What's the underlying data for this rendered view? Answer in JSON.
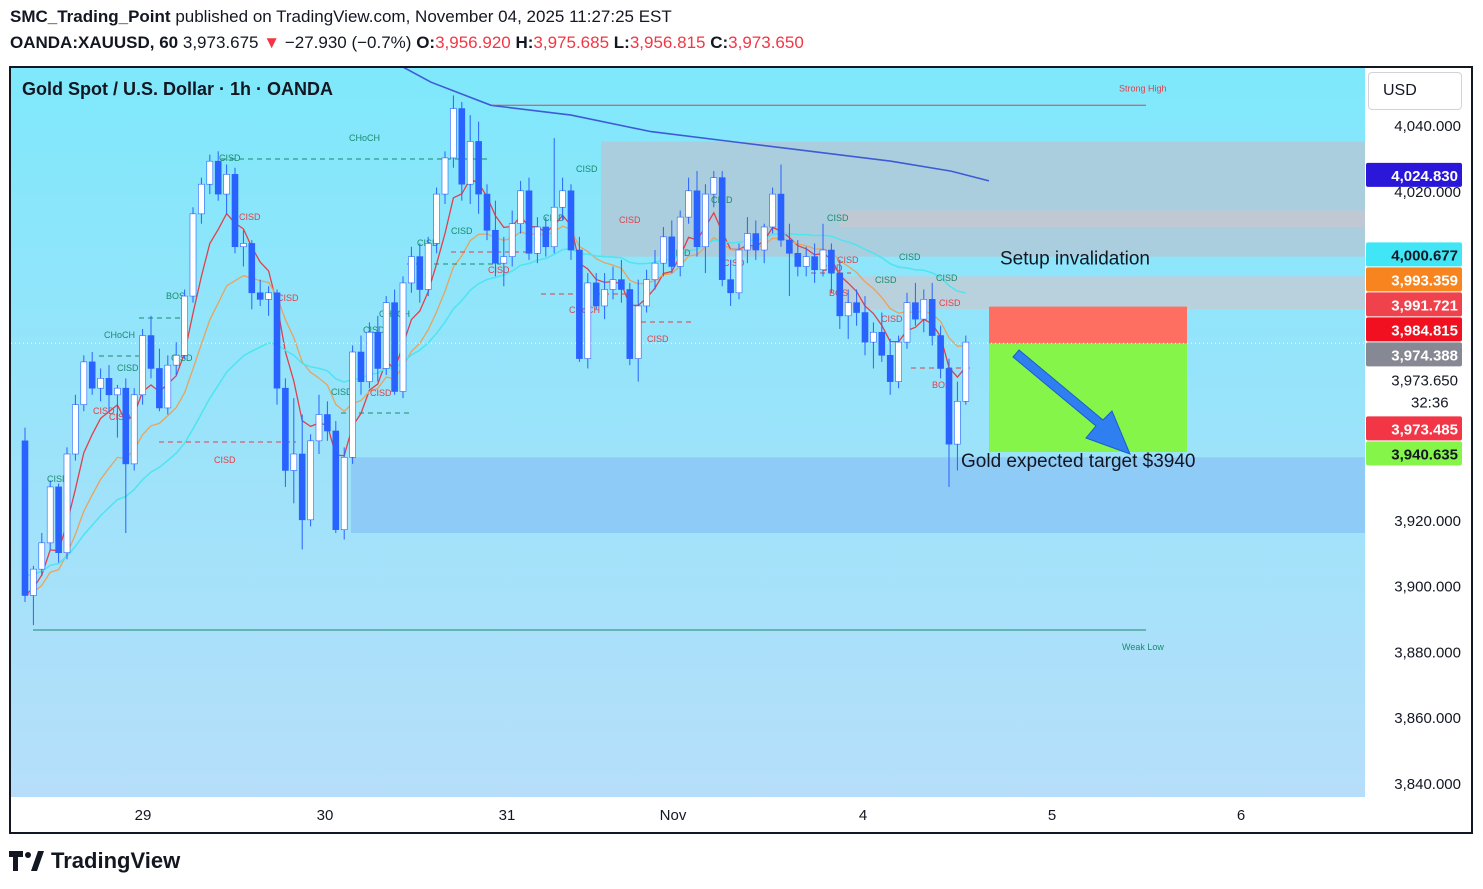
{
  "header": {
    "author": "SMC_Trading_Point",
    "published": "published on TradingView.com, November 04, 2025 11:27:25 EST",
    "symbol": "OANDA:XAUUSD, 60",
    "last": "3,973.675",
    "change_arrow": "▼",
    "change": "−27.930 (−0.7%)",
    "o_label": "O:",
    "o": "3,956.920",
    "h_label": "H:",
    "h": "3,975.685",
    "l_label": "L:",
    "l": "3,956.815",
    "c_label": "C:",
    "c": "3,973.650"
  },
  "chart_title": "Gold Spot / U.S. Dollar · 1h · OANDA",
  "currency_button": "USD",
  "brand": "TradingView",
  "colors": {
    "background_top": "#7fe8fb",
    "background_bottom": "#b9defa",
    "bull": "#ffffff",
    "bear": "#2962ff",
    "stop_zone": "#ff6f61",
    "target_zone": "#86f54a",
    "demand_zone": "#8ecbf7",
    "supply_zone": "#b0c9d8",
    "ema_blue": "#3d5bd6",
    "ema_cyan": "#4ee4f0",
    "ema_orange": "#e8a35d",
    "ema_red": "#e0404a"
  },
  "chart_data": {
    "type": "candlestick",
    "symbol": "XAUUSD",
    "timeframe": "1h",
    "y_axis": {
      "ticks": [
        4040,
        4020,
        3920,
        3900,
        3880,
        3860,
        3840
      ],
      "tick_labels": [
        "4,040.000",
        "4,020.000",
        "3,920.000",
        "3,900.000",
        "3,880.000",
        "3,860.000",
        "3,840.000"
      ],
      "ylim": [
        3831,
        4067
      ]
    },
    "x_axis": {
      "tick_labels": [
        "29",
        "30",
        "31",
        "Nov",
        "4",
        "5",
        "6"
      ]
    },
    "price_tags": [
      {
        "value": 4024.83,
        "label": "4,024.830",
        "color": "#2a17d9",
        "text_color": "#ffffff"
      },
      {
        "value": 4000.677,
        "label": "4,000.677",
        "color": "#40e6f5",
        "text_color": "#131722"
      },
      {
        "value": 3993.359,
        "label": "3,993.359",
        "color": "#f7841e",
        "text_color": "#ffffff"
      },
      {
        "value": 3991.721,
        "label": "3,991.721",
        "color": "#f0424c",
        "text_color": "#ffffff"
      },
      {
        "value": 3984.815,
        "label": "3,984.815",
        "color": "#f0101f",
        "text_color": "#ffffff"
      },
      {
        "value": 3974.388,
        "label": "3,974.388",
        "color": "#868993",
        "text_color": "#ffffff"
      },
      {
        "value": 3973.65,
        "label": "3,973.650",
        "color": "#ffffff",
        "text_color": "#131722",
        "sub": "32:36"
      },
      {
        "value": 3973.485,
        "label": "3,973.485",
        "color": "#f23645",
        "text_color": "#ffffff"
      },
      {
        "value": 3940.635,
        "label": "3,940.635",
        "color": "#86f54a",
        "text_color": "#131722"
      }
    ],
    "zones": [
      {
        "name": "supply",
        "top": 4035,
        "bottom": 4000
      },
      {
        "name": "supply-inner",
        "top": 4014,
        "bottom": 4009
      },
      {
        "name": "invalidation-zone",
        "top": 3994,
        "bottom": 3984
      },
      {
        "name": "stop",
        "top": 3984.8,
        "bottom": 3973.6
      },
      {
        "name": "target",
        "top": 3973.6,
        "bottom": 3940.6
      },
      {
        "name": "demand",
        "top": 3939,
        "bottom": 3916
      }
    ],
    "levels": [
      {
        "label": "Strong High",
        "value": 4046
      },
      {
        "label": "Weak Low",
        "value": 3886.5
      }
    ],
    "annotations": [
      {
        "text": "Setup invalidation"
      },
      {
        "text": "Gold expected target $3940"
      }
    ],
    "structure_labels": [
      "CHoCH",
      "CISD",
      "CISD",
      "CISD",
      "BOS",
      "CHoCH",
      "CISD",
      "CISD",
      "CISD",
      "CISD",
      "CISD",
      "CHoCH",
      "CISD",
      "CISD",
      "CISD",
      "CISD",
      "CISD",
      "CISD",
      "CISD",
      "CISD",
      "CHoCH",
      "CISD",
      "CISD",
      "CISD",
      "CISD",
      "CISD",
      "CISD",
      "CISD",
      "CISD",
      "CISD",
      "BOS",
      "CISD",
      "CISD",
      "CISD",
      "CISD",
      "CISD",
      "BOS"
    ],
    "candles": [
      {
        "o": 3944,
        "h": 3948,
        "c": 3897,
        "l": 3895
      },
      {
        "o": 3897,
        "h": 3906,
        "c": 3905,
        "l": 3888
      },
      {
        "o": 3905,
        "h": 3916,
        "c": 3913,
        "l": 3903
      },
      {
        "o": 3913,
        "h": 3932,
        "c": 3930,
        "l": 3911
      },
      {
        "o": 3930,
        "h": 3931,
        "c": 3910,
        "l": 3907
      },
      {
        "o": 3910,
        "h": 3942,
        "c": 3940,
        "l": 3908
      },
      {
        "o": 3940,
        "h": 3958,
        "c": 3955,
        "l": 3938
      },
      {
        "o": 3955,
        "h": 3970,
        "c": 3968,
        "l": 3953
      },
      {
        "o": 3968,
        "h": 3971,
        "c": 3960,
        "l": 3958
      },
      {
        "o": 3960,
        "h": 3966,
        "c": 3963,
        "l": 3956
      },
      {
        "o": 3963,
        "h": 3967,
        "c": 3958,
        "l": 3953
      },
      {
        "o": 3958,
        "h": 3961,
        "c": 3960,
        "l": 3945
      },
      {
        "o": 3960,
        "h": 3963,
        "c": 3937,
        "l": 3916
      },
      {
        "o": 3937,
        "h": 3960,
        "c": 3958,
        "l": 3935
      },
      {
        "o": 3958,
        "h": 3978,
        "c": 3976,
        "l": 3955
      },
      {
        "o": 3976,
        "h": 3982,
        "c": 3966,
        "l": 3963
      },
      {
        "o": 3966,
        "h": 3972,
        "c": 3954,
        "l": 3953
      },
      {
        "o": 3954,
        "h": 3970,
        "c": 3967,
        "l": 3952
      },
      {
        "o": 3967,
        "h": 3974,
        "c": 3970,
        "l": 3964
      },
      {
        "o": 3970,
        "h": 3990,
        "c": 3988,
        "l": 3969
      },
      {
        "o": 3988,
        "h": 4015,
        "c": 4013,
        "l": 3986
      },
      {
        "o": 4013,
        "h": 4024,
        "c": 4022,
        "l": 4010
      },
      {
        "o": 4022,
        "h": 4031,
        "c": 4029,
        "l": 4019
      },
      {
        "o": 4029,
        "h": 4032,
        "c": 4019,
        "l": 4017
      },
      {
        "o": 4019,
        "h": 4028,
        "c": 4025,
        "l": 4013
      },
      {
        "o": 4025,
        "h": 4027,
        "c": 4003,
        "l": 4001
      },
      {
        "o": 4003,
        "h": 4008,
        "c": 4004,
        "l": 3997
      },
      {
        "o": 4004,
        "h": 4005,
        "c": 3989,
        "l": 3984
      },
      {
        "o": 3989,
        "h": 3993,
        "c": 3987,
        "l": 3985
      },
      {
        "o": 3987,
        "h": 3991,
        "c": 3989,
        "l": 3982
      },
      {
        "o": 3989,
        "h": 3990,
        "c": 3960,
        "l": 3955
      },
      {
        "o": 3960,
        "h": 3963,
        "c": 3935,
        "l": 3930
      },
      {
        "o": 3935,
        "h": 3957,
        "c": 3940,
        "l": 3925
      },
      {
        "o": 3940,
        "h": 3952,
        "c": 3920,
        "l": 3911
      },
      {
        "o": 3920,
        "h": 3946,
        "c": 3944,
        "l": 3918
      },
      {
        "o": 3944,
        "h": 3958,
        "c": 3952,
        "l": 3940
      },
      {
        "o": 3952,
        "h": 3956,
        "c": 3947,
        "l": 3944
      },
      {
        "o": 3947,
        "h": 3950,
        "c": 3917,
        "l": 3916
      },
      {
        "o": 3917,
        "h": 3942,
        "c": 3939,
        "l": 3914
      },
      {
        "o": 3939,
        "h": 3973,
        "c": 3971,
        "l": 3937
      },
      {
        "o": 3971,
        "h": 3976,
        "c": 3962,
        "l": 3958
      },
      {
        "o": 3962,
        "h": 3980,
        "c": 3977,
        "l": 3960
      },
      {
        "o": 3977,
        "h": 3982,
        "c": 3966,
        "l": 3962
      },
      {
        "o": 3966,
        "h": 3988,
        "c": 3986,
        "l": 3964
      },
      {
        "o": 3986,
        "h": 3990,
        "c": 3959,
        "l": 3958
      },
      {
        "o": 3959,
        "h": 3994,
        "c": 3992,
        "l": 3957
      },
      {
        "o": 3992,
        "h": 4003,
        "c": 4000,
        "l": 3989
      },
      {
        "o": 4000,
        "h": 4004,
        "c": 3990,
        "l": 3986
      },
      {
        "o": 3990,
        "h": 4006,
        "c": 4004,
        "l": 3988
      },
      {
        "o": 4004,
        "h": 4021,
        "c": 4019,
        "l": 4001
      },
      {
        "o": 4019,
        "h": 4032,
        "c": 4030,
        "l": 4016
      },
      {
        "o": 4030,
        "h": 4049,
        "c": 4045,
        "l": 4027
      },
      {
        "o": 4045,
        "h": 4047,
        "c": 4022,
        "l": 4017
      },
      {
        "o": 4022,
        "h": 4043,
        "c": 4035,
        "l": 4016
      },
      {
        "o": 4035,
        "h": 4041,
        "c": 4019,
        "l": 4013
      },
      {
        "o": 4019,
        "h": 4022,
        "c": 4008,
        "l": 4005
      },
      {
        "o": 4008,
        "h": 4017,
        "c": 3998,
        "l": 3994
      },
      {
        "o": 3998,
        "h": 4006,
        "c": 4000,
        "l": 3991
      },
      {
        "o": 4000,
        "h": 4014,
        "c": 4010,
        "l": 3997
      },
      {
        "o": 4010,
        "h": 4023,
        "c": 4020,
        "l": 4007
      },
      {
        "o": 4020,
        "h": 4024,
        "c": 4001,
        "l": 3999
      },
      {
        "o": 4001,
        "h": 4012,
        "c": 4009,
        "l": 3998
      },
      {
        "o": 4009,
        "h": 4012,
        "c": 4003,
        "l": 4000
      },
      {
        "o": 4003,
        "h": 4036,
        "c": 4015,
        "l": 4001
      },
      {
        "o": 4015,
        "h": 4024,
        "c": 4020,
        "l": 4011
      },
      {
        "o": 4020,
        "h": 4022,
        "c": 4002,
        "l": 3999
      },
      {
        "o": 4002,
        "h": 4006,
        "c": 3969,
        "l": 3968
      },
      {
        "o": 3969,
        "h": 3995,
        "c": 3992,
        "l": 3966
      },
      {
        "o": 3992,
        "h": 3995,
        "c": 3985,
        "l": 3984
      },
      {
        "o": 3985,
        "h": 3995,
        "c": 3990,
        "l": 3981
      },
      {
        "o": 3990,
        "h": 3997,
        "c": 3993,
        "l": 3987
      },
      {
        "o": 3993,
        "h": 3999,
        "c": 3990,
        "l": 3986
      },
      {
        "o": 3990,
        "h": 3992,
        "c": 3969,
        "l": 3967
      },
      {
        "o": 3969,
        "h": 3993,
        "c": 3985,
        "l": 3962
      },
      {
        "o": 3985,
        "h": 3996,
        "c": 3993,
        "l": 3983
      },
      {
        "o": 3993,
        "h": 4002,
        "c": 3998,
        "l": 3990
      },
      {
        "o": 3998,
        "h": 4009,
        "c": 4006,
        "l": 3994
      },
      {
        "o": 4006,
        "h": 4011,
        "c": 3997,
        "l": 3995
      },
      {
        "o": 3997,
        "h": 4014,
        "c": 4012,
        "l": 3994
      },
      {
        "o": 4012,
        "h": 4024,
        "c": 4020,
        "l": 4010
      },
      {
        "o": 4020,
        "h": 4026,
        "c": 4003,
        "l": 4000
      },
      {
        "o": 4003,
        "h": 4022,
        "c": 4019,
        "l": 3995
      },
      {
        "o": 4019,
        "h": 4026,
        "c": 4024,
        "l": 4015
      },
      {
        "o": 4024,
        "h": 4026,
        "c": 3993,
        "l": 3991
      },
      {
        "o": 3993,
        "h": 3999,
        "c": 3989,
        "l": 3985
      },
      {
        "o": 3989,
        "h": 4004,
        "c": 4002,
        "l": 3987
      },
      {
        "o": 4002,
        "h": 4012,
        "c": 4007,
        "l": 3998
      },
      {
        "o": 4007,
        "h": 4011,
        "c": 4002,
        "l": 3999
      },
      {
        "o": 4002,
        "h": 4010,
        "c": 4009,
        "l": 3998
      },
      {
        "o": 4009,
        "h": 4021,
        "c": 4019,
        "l": 4007
      },
      {
        "o": 4019,
        "h": 4028,
        "c": 4005,
        "l": 4003
      },
      {
        "o": 4005,
        "h": 4010,
        "c": 4001,
        "l": 3988
      },
      {
        "o": 4001,
        "h": 4005,
        "c": 3997,
        "l": 3994
      },
      {
        "o": 3997,
        "h": 4003,
        "c": 4000,
        "l": 3994
      },
      {
        "o": 4000,
        "h": 4004,
        "c": 3996,
        "l": 3992
      },
      {
        "o": 3996,
        "h": 4010,
        "c": 4002,
        "l": 3994
      },
      {
        "o": 4002,
        "h": 4004,
        "c": 3995,
        "l": 3989
      },
      {
        "o": 3995,
        "h": 3999,
        "c": 3982,
        "l": 3978
      },
      {
        "o": 3982,
        "h": 3990,
        "c": 3986,
        "l": 3975
      },
      {
        "o": 3986,
        "h": 3990,
        "c": 3983,
        "l": 3979
      },
      {
        "o": 3983,
        "h": 3988,
        "c": 3974,
        "l": 3970
      },
      {
        "o": 3974,
        "h": 3980,
        "c": 3977,
        "l": 3966
      },
      {
        "o": 3977,
        "h": 3983,
        "c": 3970,
        "l": 3968
      },
      {
        "o": 3970,
        "h": 3975,
        "c": 3962,
        "l": 3958
      },
      {
        "o": 3962,
        "h": 3976,
        "c": 3974,
        "l": 3960
      },
      {
        "o": 3974,
        "h": 3989,
        "c": 3986,
        "l": 3972
      },
      {
        "o": 3986,
        "h": 3992,
        "c": 3981,
        "l": 3979
      },
      {
        "o": 3981,
        "h": 3990,
        "c": 3987,
        "l": 3977
      },
      {
        "o": 3987,
        "h": 3992,
        "c": 3976,
        "l": 3973
      },
      {
        "o": 3976,
        "h": 3979,
        "c": 3966,
        "l": 3963
      },
      {
        "o": 3966,
        "h": 3969,
        "c": 3943,
        "l": 3930
      },
      {
        "o": 3943,
        "h": 3962,
        "c": 3956,
        "l": 3935
      },
      {
        "o": 3956,
        "h": 3976,
        "c": 3974,
        "l": 3955
      }
    ]
  }
}
